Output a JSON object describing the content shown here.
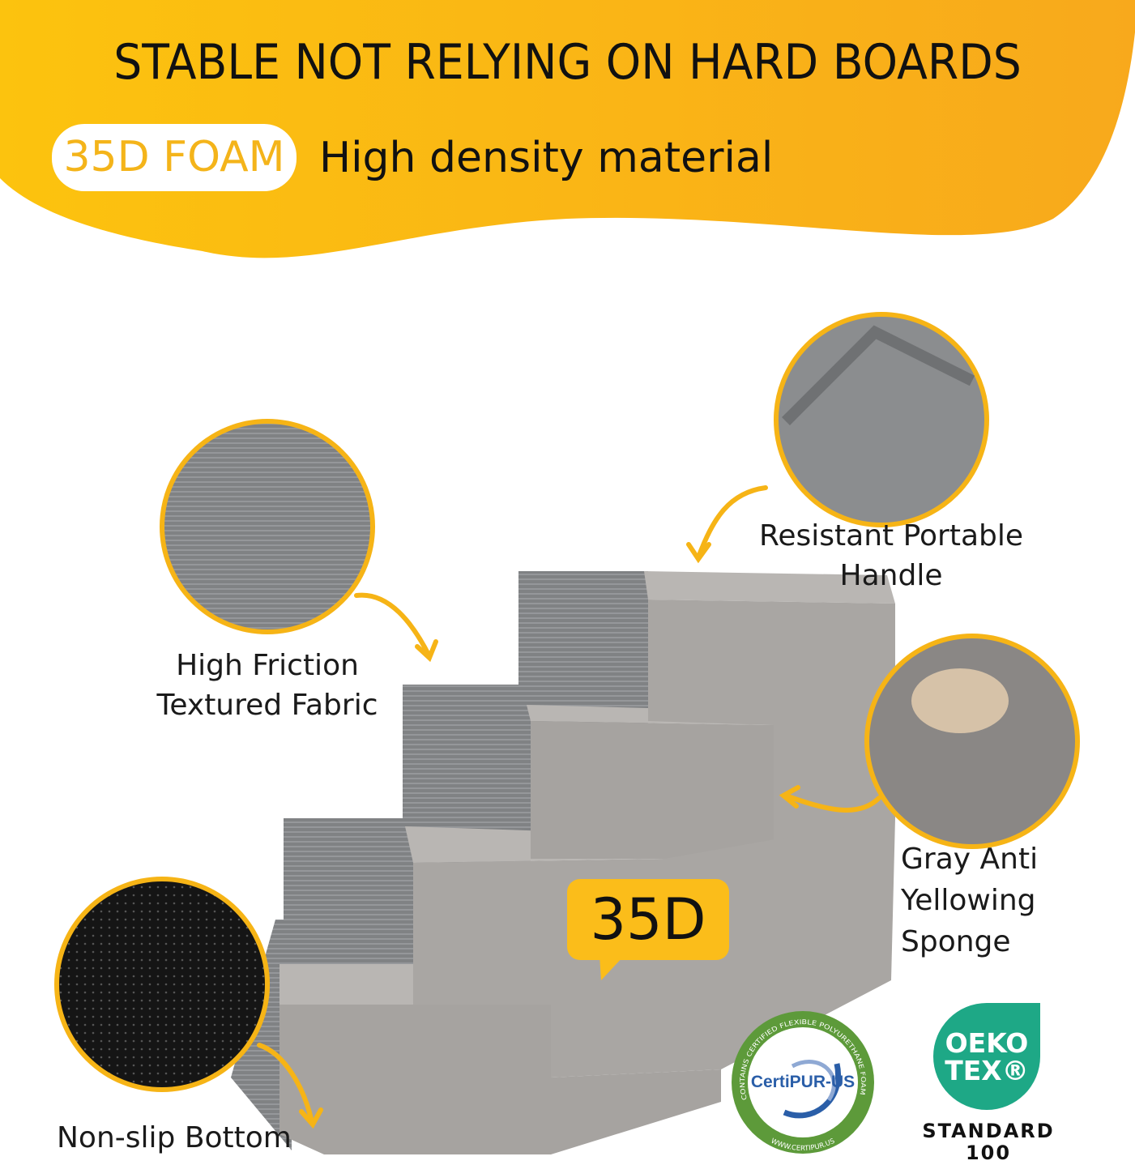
{
  "header": {
    "title": "STABLE NOT RELYING ON HARD BOARDS",
    "badge": "35D FOAM",
    "subtitle": "High density material"
  },
  "features": [
    {
      "label_line1": "High Friction",
      "label_line2": "Textured Fabric"
    },
    {
      "label_line1": "Resistant Portable",
      "label_line2": "Handle"
    },
    {
      "label_line1": "Gray Anti",
      "label_line2": "Yellowing",
      "label_line3": "Sponge"
    },
    {
      "label_line1": "Non-slip Bottom"
    }
  ],
  "callout": "35D",
  "certifications": {
    "certipur": {
      "name": "CertiPUR-US",
      "ring_top": "CONTAINS CERTIFIED FLEXIBLE POLYURETHANE FOAM",
      "ring_bottom": "WWW.CERTIPUR.US"
    },
    "oeko": {
      "line1": "OEKO",
      "line2": "TEX®",
      "standard": "STANDARD",
      "number": "100"
    }
  },
  "colors": {
    "accent": "#fbbd1a",
    "foam": "#a9a6a3",
    "fabric": "#7f8183",
    "oeko": "#1ea886",
    "certipur_green": "#5d9a3a"
  }
}
